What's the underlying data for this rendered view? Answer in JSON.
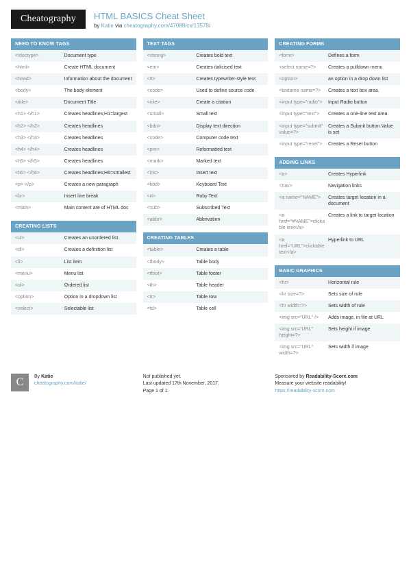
{
  "brand": "Cheatography",
  "title": "HTML BASICS Cheat Sheet",
  "byline_prefix": "by ",
  "author": "Katie",
  "byline_mid": " via ",
  "source_link": "cheatography.com/47088/cs/13578/",
  "colors": {
    "header_bg": "#6aa3c4",
    "link": "#6aa3c4",
    "logo_bg": "#1a1a1a",
    "alt_row": "#f0f5f8",
    "tag_text": "#888888"
  },
  "columns": [
    [
      {
        "title": "NEED TO KNOW TAGS",
        "rows": [
          {
            "tag": "<!doctype>",
            "desc": "Document type"
          },
          {
            "tag": "<html>",
            "desc": "Create HTML document"
          },
          {
            "tag": "<head>",
            "desc": "Information about the document"
          },
          {
            "tag": "<body>",
            "desc": "The body element"
          },
          {
            "tag": "<title>",
            "desc": "Document Title"
          },
          {
            "tag": "<h1> </h1>",
            "desc": "Creates headlines;H1=largest"
          },
          {
            "tag": "<h2> </h2>",
            "desc": "Creates headlines"
          },
          {
            "tag": "<h3> </h3>",
            "desc": "Creates headlines"
          },
          {
            "tag": "<h4> </h4>",
            "desc": "Creates headlines"
          },
          {
            "tag": "<h5> </h5>",
            "desc": "Creates headlines"
          },
          {
            "tag": "<h6> </h6>",
            "desc": "Creates headlines;H6=smallest"
          },
          {
            "tag": "<p> </p>",
            "desc": "Creates a new paragraph"
          },
          {
            "tag": "<br>",
            "desc": "Insert line break"
          },
          {
            "tag": "<main>",
            "desc": "Main content are of HTML doc"
          }
        ]
      },
      {
        "title": "CREATING LISTS",
        "rows": [
          {
            "tag": "<ul>",
            "desc": "Creates an unordered list"
          },
          {
            "tag": "<dl>",
            "desc": "Creates a definition list"
          },
          {
            "tag": "<li>",
            "desc": "List item"
          },
          {
            "tag": "<menu>",
            "desc": "Menu list"
          },
          {
            "tag": "<ol>",
            "desc": "Ordered list"
          },
          {
            "tag": "<option>",
            "desc": "Option in a dropdown list"
          },
          {
            "tag": "<select>",
            "desc": "Selectable list"
          }
        ]
      }
    ],
    [
      {
        "title": "TEXT TAGS",
        "rows": [
          {
            "tag": "<strong>",
            "desc": "Creates bold text"
          },
          {
            "tag": "<em>",
            "desc": "Creates italicised text"
          },
          {
            "tag": "<tt>",
            "desc": "Creates typewriter-style text"
          },
          {
            "tag": "<code>",
            "desc": "Used to define source code"
          },
          {
            "tag": "<cite>",
            "desc": "Create a citation"
          },
          {
            "tag": "<small>",
            "desc": "Small text"
          },
          {
            "tag": "<bdo>",
            "desc": "Display text direction"
          },
          {
            "tag": "<code>",
            "desc": "Computer code text"
          },
          {
            "tag": "<pre>",
            "desc": "Reformatted text"
          },
          {
            "tag": "<mark>",
            "desc": "Marked text"
          },
          {
            "tag": "<ins>",
            "desc": "Insert text"
          },
          {
            "tag": "<kbd>",
            "desc": "Keyboard Text"
          },
          {
            "tag": "<rt>",
            "desc": "Ruby Text"
          },
          {
            "tag": "<sub>",
            "desc": "Subscribed Text"
          },
          {
            "tag": "<abbr>",
            "desc": "Abbrivation"
          }
        ]
      },
      {
        "title": "CREATING TABLES",
        "rows": [
          {
            "tag": "<table>",
            "desc": "Creates a table"
          },
          {
            "tag": "<tbody>",
            "desc": "Table body"
          },
          {
            "tag": "<tfoot>",
            "desc": "Table footer"
          },
          {
            "tag": "<th>",
            "desc": "Table header"
          },
          {
            "tag": "<tr>",
            "desc": "Table row"
          },
          {
            "tag": "<td>",
            "desc": "Table cell"
          }
        ]
      }
    ],
    [
      {
        "title": "CREATING FORMS",
        "rows": [
          {
            "tag": "<form>",
            "desc": "Defines a form"
          },
          {
            "tag": "<select name=?>",
            "desc": "Creates a pulldown menu"
          },
          {
            "tag": "<option>",
            "desc": "an option in a drop down list"
          },
          {
            "tag": "<textarea name=?>",
            "desc": "Creates a text box area."
          },
          {
            "tag": "<input type=\"radio\">",
            "desc": "Input Radio button"
          },
          {
            "tag": "<input type=\"text\">",
            "desc": "Creates a one-line text area."
          },
          {
            "tag": "<input type=\"submit\" value=?>",
            "desc": "Creates a Submit button.Value is set"
          },
          {
            "tag": "<input type=\"reset\">",
            "desc": "Creates a Reset button"
          }
        ]
      },
      {
        "title": "ADDING LINKS",
        "rows": [
          {
            "tag": "<a>",
            "desc": "Creates Hyperlink"
          },
          {
            "tag": "<nav>",
            "desc": "Navigation links"
          },
          {
            "tag": "<a name=\"NAME\">",
            "desc": "Creates target location in a document"
          },
          {
            "tag": "<a href=\"#NAME\">clickable text</a>",
            "desc": "Creates a link to target location"
          },
          {
            "tag": "<a href=\"URL\">clickable text</a>",
            "desc": "Hyperlink to URL"
          }
        ]
      },
      {
        "title": "BASIC GRAPHICS",
        "rows": [
          {
            "tag": "<hr>",
            "desc": "Horizontal rule"
          },
          {
            "tag": "<hr size=?>",
            "desc": "Sets size of rule"
          },
          {
            "tag": "<hr width=?>",
            "desc": "Sets width of rule"
          },
          {
            "tag": "<img src=\"URL\" />",
            "desc": "Adds image, in file at URL"
          },
          {
            "tag": "<img src=\"URL\" height=?>",
            "desc": "Sets height if image"
          },
          {
            "tag": "<img src=\"URL\" width=?>",
            "desc": "Sets width if image"
          }
        ]
      }
    ]
  ],
  "footer": {
    "left": {
      "by_prefix": "By ",
      "author": "Katie",
      "link": "cheatography.com/katie/"
    },
    "mid": {
      "line1": "Not published yet.",
      "line2": "Last updated 17th November, 2017.",
      "line3": "Page 1 of 1."
    },
    "right": {
      "line1_prefix": "Sponsored by ",
      "sponsor": "Readability-Score.com",
      "line2": "Measure your website readability!",
      "link": "https://readability-score.com"
    }
  }
}
